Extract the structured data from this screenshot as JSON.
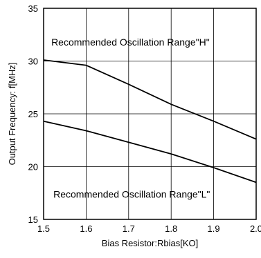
{
  "chart_data": {
    "type": "line",
    "title": "",
    "xlabel": "Bias Resistor:Rbias[KO]",
    "ylabel": "Output Frequency: f[MHz]",
    "xlim": [
      1.5,
      2.0
    ],
    "ylim": [
      15,
      35
    ],
    "x_ticks": [
      1.5,
      1.6,
      1.7,
      1.8,
      1.9,
      2.0
    ],
    "x_tick_labels": [
      "1.5",
      "1.6",
      "1.7",
      "1.8",
      "1.9",
      "2.0"
    ],
    "y_ticks": [
      15,
      20,
      25,
      30,
      35
    ],
    "y_tick_labels": [
      "15",
      "20",
      "25",
      "30",
      "35"
    ],
    "grid": true,
    "legend": "none",
    "series": [
      {
        "x": [
          1.5,
          1.6,
          1.7,
          1.8,
          1.9,
          2.0
        ],
        "values": [
          30.1,
          29.6,
          27.8,
          25.9,
          24.3,
          22.6
        ],
        "color": "#000000"
      },
      {
        "x": [
          1.5,
          1.6,
          1.7,
          1.8,
          1.9,
          2.0
        ],
        "values": [
          24.3,
          23.4,
          22.3,
          21.2,
          19.9,
          18.5
        ],
        "color": "#000000"
      }
    ],
    "annotations": [
      {
        "text": "Recommended Oscillation Range\"H\"",
        "x": 1.505,
        "y": 31.8
      },
      {
        "text": "Recommended Oscillation Range\"L\"",
        "x": 1.51,
        "y": 17.4
      }
    ]
  }
}
